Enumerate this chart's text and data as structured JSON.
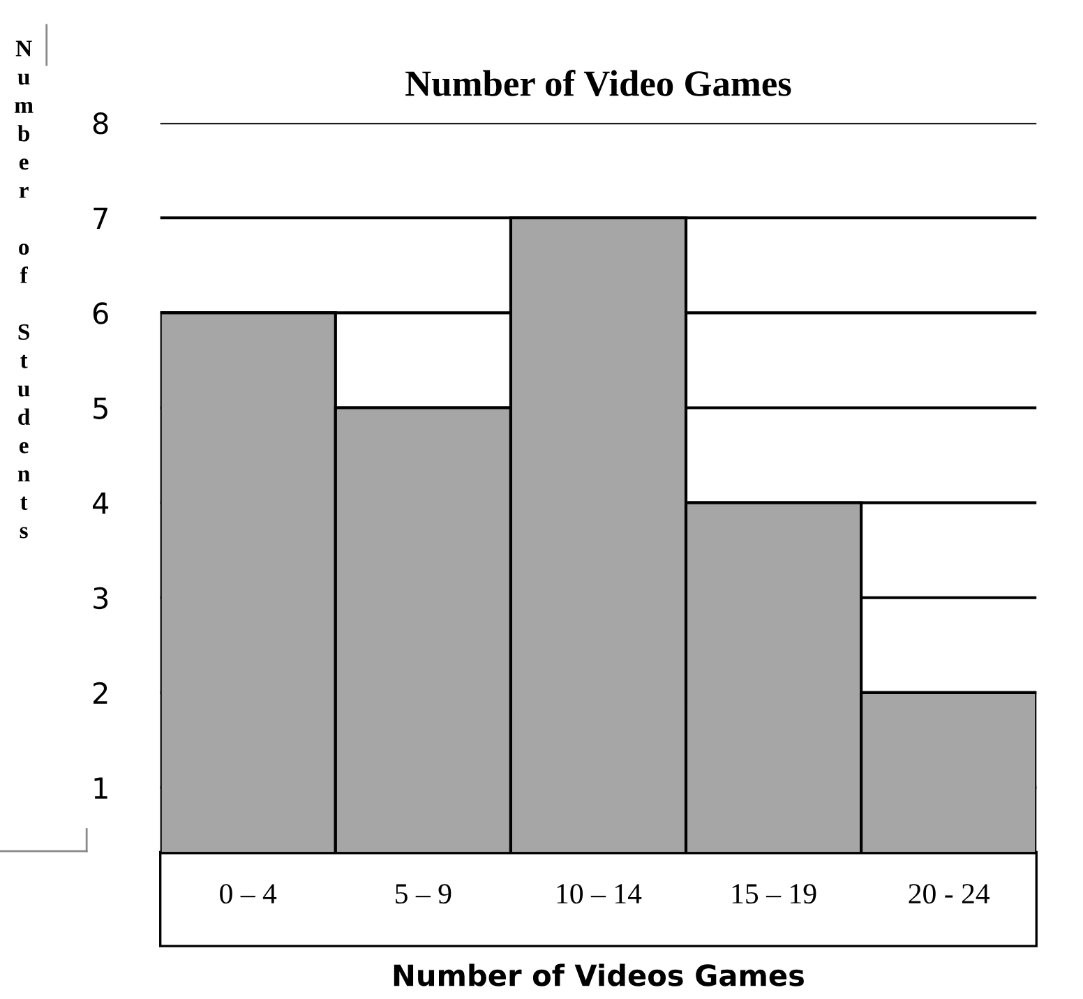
{
  "chart_data": {
    "type": "bar",
    "title": "Number of Video Games",
    "xlabel": "Number of Videos Games",
    "ylabel": "Number of Students",
    "categories": [
      "0 – 4",
      "5 – 9",
      "10 – 14",
      "15 – 19",
      "20 - 24"
    ],
    "values": [
      6,
      5,
      7,
      4,
      2
    ],
    "color": "#a6a6a6",
    "ylim": [
      0.32,
      8
    ],
    "yticks": [
      1,
      2,
      3,
      4,
      5,
      6,
      7,
      8
    ],
    "grid": "y"
  }
}
